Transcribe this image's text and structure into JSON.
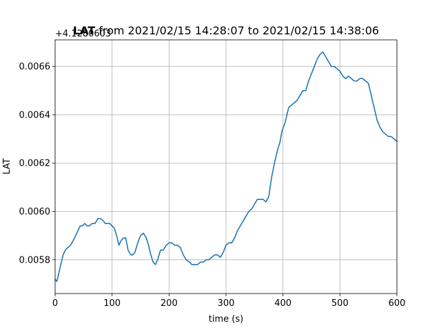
{
  "chart_data": {
    "type": "line",
    "title_bold": "LAT",
    "title_rest": " from 2021/02/15 14:28:07 to 2021/02/15 14:38:06",
    "xlabel": "time (s)",
    "ylabel": "LAT",
    "y_offset_label": "+4.1280603",
    "xlim": [
      0,
      600
    ],
    "ylim": [
      0.00566,
      0.00671
    ],
    "xticks": [
      0,
      100,
      200,
      300,
      400,
      500,
      600
    ],
    "xtick_labels": [
      "0",
      "100",
      "200",
      "300",
      "400",
      "500",
      "600"
    ],
    "yticks": [
      0.0058,
      0.006,
      0.0062,
      0.0064,
      0.0066
    ],
    "ytick_labels": [
      "0.0058",
      "0.0060",
      "0.0062",
      "0.0064",
      "0.0066"
    ],
    "grid": true,
    "series_color": "#1f77b4",
    "series": [
      {
        "x": [
          0,
          3,
          6,
          10,
          14,
          18,
          22,
          27,
          32,
          36,
          40,
          44,
          48,
          52,
          56,
          60,
          65,
          70,
          75,
          80,
          85,
          88,
          92,
          96,
          100,
          104,
          108,
          112,
          116,
          120,
          124,
          128,
          133,
          136,
          140,
          145,
          150,
          155,
          160,
          164,
          168,
          172,
          176,
          180,
          185,
          190,
          195,
          200,
          205,
          210,
          215,
          220,
          225,
          230,
          236,
          240,
          245,
          250,
          255,
          260,
          265,
          270,
          275,
          280,
          285,
          290,
          295,
          300,
          305,
          310,
          315,
          320,
          325,
          330,
          335,
          340,
          345,
          350,
          355,
          360,
          365,
          370,
          375,
          380,
          385,
          390,
          395,
          398,
          401,
          404,
          407,
          410,
          415,
          420,
          425,
          430,
          435,
          440,
          445,
          450,
          455,
          460,
          465,
          470,
          475,
          480,
          485,
          490,
          495,
          500,
          505,
          510,
          515,
          520,
          525,
          530,
          535,
          540,
          545,
          550,
          555,
          560,
          565,
          570,
          575,
          580,
          585,
          590,
          595,
          600
        ],
        "y": [
          0.00572,
          0.00571,
          0.00574,
          0.00578,
          0.00582,
          0.00584,
          0.00585,
          0.00586,
          0.00588,
          0.0059,
          0.00592,
          0.00594,
          0.00594,
          0.00595,
          0.00594,
          0.00594,
          0.00595,
          0.00595,
          0.00597,
          0.00597,
          0.00596,
          0.00595,
          0.00595,
          0.00595,
          0.00594,
          0.00593,
          0.0059,
          0.00586,
          0.00588,
          0.00589,
          0.00589,
          0.00584,
          0.00582,
          0.00582,
          0.00583,
          0.00587,
          0.0059,
          0.00591,
          0.00589,
          0.00586,
          0.00582,
          0.00579,
          0.00578,
          0.0058,
          0.00584,
          0.00584,
          0.00586,
          0.00587,
          0.00587,
          0.00586,
          0.00586,
          0.00585,
          0.00582,
          0.0058,
          0.00579,
          0.00578,
          0.00578,
          0.00578,
          0.00579,
          0.00579,
          0.0058,
          0.0058,
          0.00581,
          0.00582,
          0.00582,
          0.00581,
          0.00583,
          0.00586,
          0.00587,
          0.00587,
          0.00589,
          0.00592,
          0.00594,
          0.00596,
          0.00598,
          0.006,
          0.00601,
          0.00603,
          0.00605,
          0.00605,
          0.00605,
          0.00604,
          0.00606,
          0.00614,
          0.0062,
          0.00625,
          0.00629,
          0.00633,
          0.00635,
          0.00637,
          0.0064,
          0.00643,
          0.00644,
          0.00645,
          0.00646,
          0.00648,
          0.0065,
          0.0065,
          0.00654,
          0.00657,
          0.0066,
          0.00663,
          0.00665,
          0.00666,
          0.00664,
          0.00662,
          0.0066,
          0.0066,
          0.00659,
          0.00658,
          0.00656,
          0.00655,
          0.00656,
          0.00655,
          0.00654,
          0.00654,
          0.00655,
          0.00655,
          0.00654,
          0.00653,
          0.00648,
          0.00643,
          0.00638,
          0.00635,
          0.00633,
          0.00632,
          0.00631,
          0.00631,
          0.0063,
          0.00629
        ]
      }
    ]
  }
}
